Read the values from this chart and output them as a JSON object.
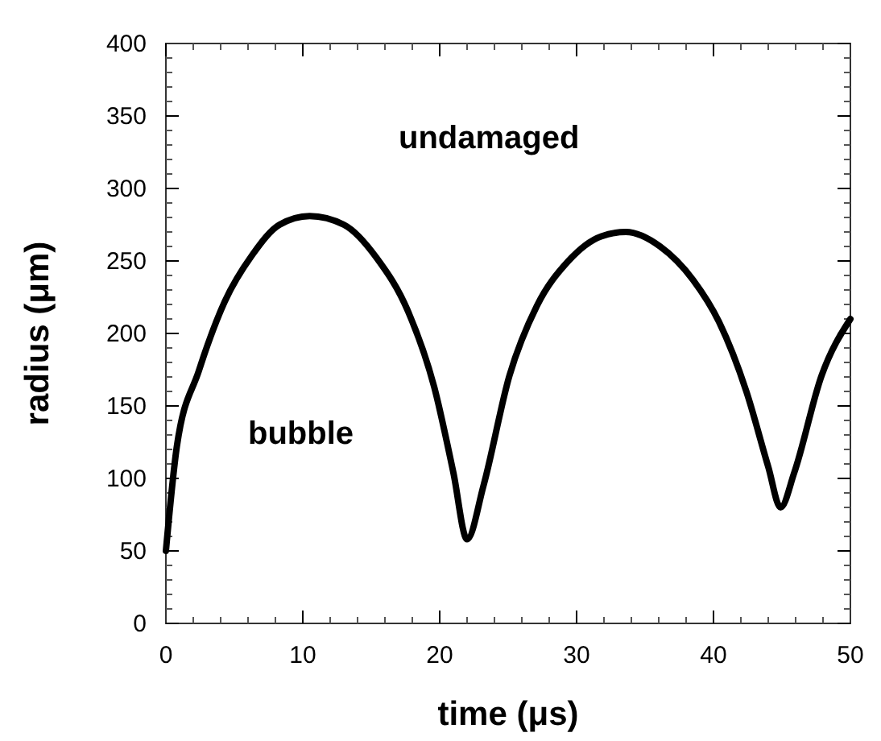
{
  "chart_data": {
    "type": "line",
    "xlabel": "time (μs)",
    "ylabel": "radius (μm)",
    "x": [
      0,
      0.8,
      2.4,
      4.3,
      6.3,
      8.3,
      10.5,
      13.0,
      15.4,
      17.7,
      19.6,
      21.0,
      22.0,
      23.2,
      25.1,
      27.1,
      29.4,
      31.8,
      33.6,
      36.1,
      38.5,
      40.4,
      42.4,
      44.0,
      44.9,
      45.9,
      47.9,
      50
    ],
    "series": [
      {
        "color": "#000000",
        "values": [
          50,
          122,
          174,
          222,
          254,
          275,
          281,
          275,
          252,
          215,
          163,
          104,
          58,
          95,
          171,
          219,
          250,
          267,
          270,
          260,
          237,
          208,
          160,
          108,
          80,
          104,
          171,
          210
        ]
      }
    ],
    "xlim": [
      0,
      50
    ],
    "xticks": [
      0,
      10,
      20,
      30,
      40,
      50
    ],
    "ylim": [
      0,
      400
    ],
    "yticks": [
      0,
      50,
      100,
      150,
      200,
      250,
      300,
      350,
      400
    ],
    "annotations": [
      "undamaged",
      "bubble"
    ],
    "grid": false,
    "marker": "none",
    "line_style": "solid"
  }
}
